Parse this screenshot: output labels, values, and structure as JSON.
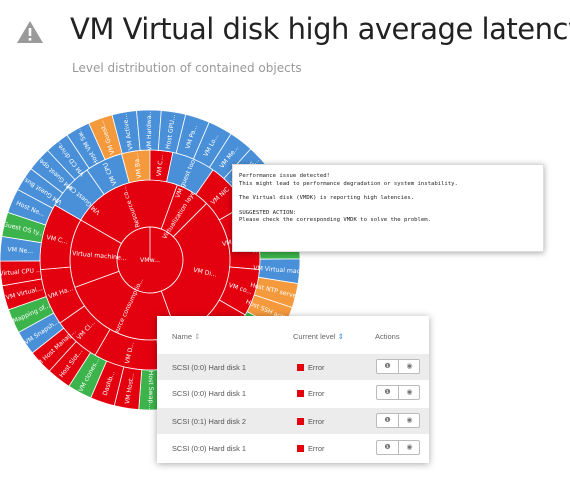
{
  "header": {
    "title": "VM Virtual disk high average latency",
    "subtitle": "Level distribution of contained objects",
    "icon": "warning-triangle-icon"
  },
  "colors": {
    "error": "#e3000f",
    "warning": "#f59a3c",
    "info": "#4a90d9",
    "ok": "#3cb44b"
  },
  "sunburst": {
    "center": "VMw...",
    "ring1": [
      "Resource co...",
      "Virtualization laye...",
      "VM Di...",
      "Resource consumptio...",
      "VM Virtual machine..."
    ],
    "ring2": [
      "VM Guest CPU ...",
      "VM CPU",
      "VM Ba...",
      "VM C...",
      "VM guest tools ...",
      "VM NIC",
      "VM vmx file...",
      "VM co...",
      "Host",
      "VM Tempo...",
      "VM D...",
      "VM Cl...",
      "VM Ha...",
      "VM C..."
    ],
    "ring3": [
      "VM Guest Bus...",
      "VM Guest ope...",
      "VM CD drive...",
      "Host VM Sw...",
      "VM Guest...",
      "VM Active...",
      "VM Hardwa...",
      "Host GPU...",
      "VM Pa...",
      "VM Lo...",
      "VM Me...",
      "VM CPU S...",
      "VM Ba...",
      "VM guest tools ...",
      "VM copy member...",
      "Host CPU overc...",
      "VM Virtual mac...",
      "Host NTP serve...",
      "Host SSH activ...",
      "VM Cluster fil...",
      "vCenter differen...",
      "VM Datastore...",
      "Host datastore...",
      "VM Fork...",
      "VM memo...",
      "Host Swap...",
      "VM Host...",
      "Dashb...",
      "VM clones...",
      "Host Slot...",
      "VM Host Manag...",
      "VM Snapsh...",
      "Mapping of...",
      "VM Virtual...",
      "Virtual CPU ...",
      "VM Ne...",
      "Guest OS ty...",
      "Host Ne..."
    ]
  },
  "tooltip": {
    "line1": "Performance issue detected!",
    "line2": "This might lead to performance degradation or system instability.",
    "line3": "The Virtual disk (VMDK) is reporting high latencies.",
    "line4": "SUGGESTED ACTION:",
    "line5": "Please check the corresponding VMDK to solve the problem."
  },
  "table": {
    "col_name": "Name",
    "col_level": "Current level",
    "col_actions": "Actions",
    "sort_icon": "⇕",
    "sort_active_icon": "⇕",
    "rows": [
      {
        "name": "SCSI (0:0) Hard disk 1",
        "level": "Error"
      },
      {
        "name": "SCSI (0:0) Hard disk 1",
        "level": "Error"
      },
      {
        "name": "SCSI (0:1) Hard disk 2",
        "level": "Error"
      },
      {
        "name": "SCSI (0:0) Hard disk 1",
        "level": "Error"
      }
    ],
    "info_glyph": "❶",
    "view_glyph": "◉"
  }
}
